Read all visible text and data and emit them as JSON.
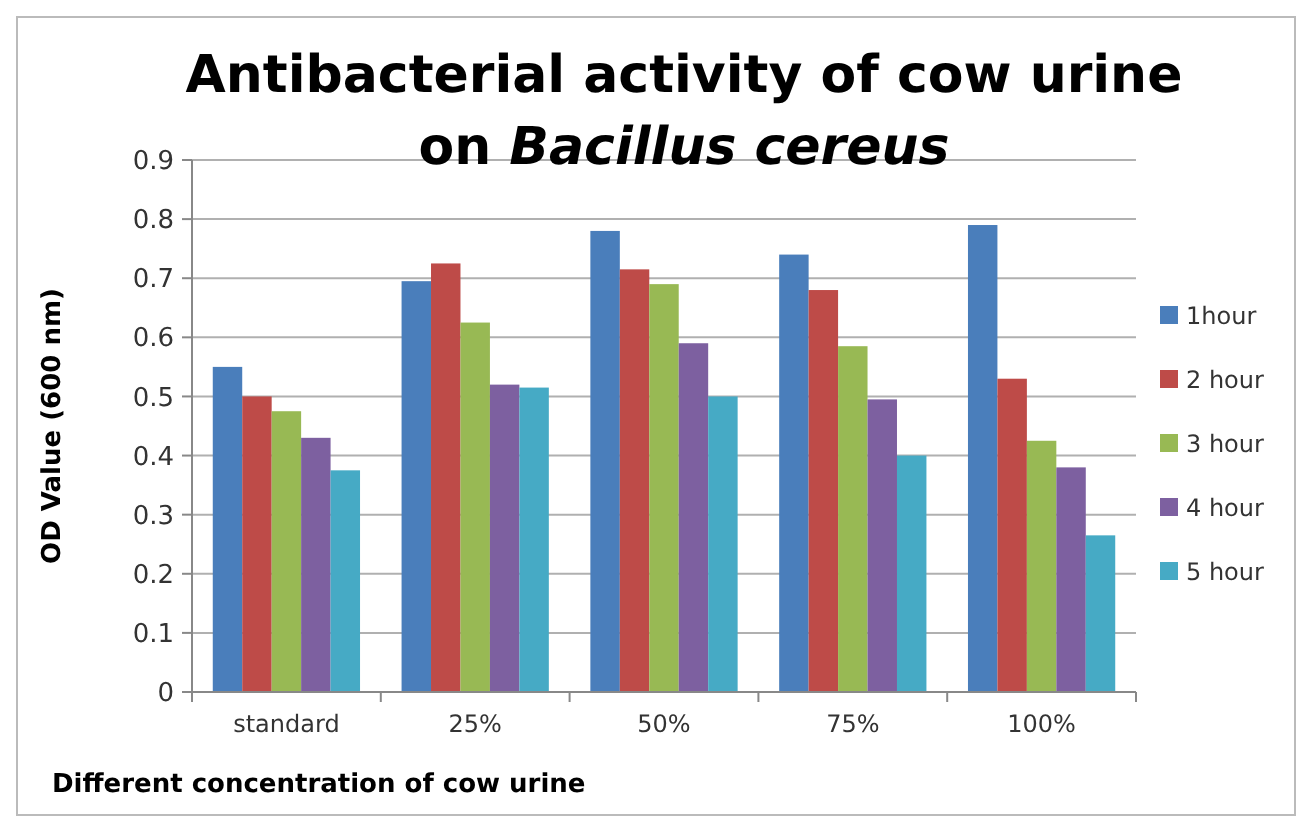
{
  "chart_data": {
    "type": "bar",
    "title": "Antibacterial activity of cow urine on Bacillus cereus",
    "xlabel": "Different concentration of cow urine",
    "ylabel": "OD Value (600 nm)",
    "categories": [
      "standard",
      "25%",
      "50%",
      "75%",
      "100%"
    ],
    "series": [
      {
        "name": "1hour",
        "color": "#4a7ebb",
        "values": [
          0.55,
          0.695,
          0.78,
          0.74,
          0.79
        ]
      },
      {
        "name": "2 hour",
        "color": "#be4b48",
        "values": [
          0.5,
          0.725,
          0.715,
          0.68,
          0.53
        ]
      },
      {
        "name": "3 hour",
        "color": "#98b954",
        "values": [
          0.475,
          0.625,
          0.69,
          0.585,
          0.425
        ]
      },
      {
        "name": "4 hour",
        "color": "#7d60a0",
        "values": [
          0.43,
          0.52,
          0.59,
          0.495,
          0.38
        ]
      },
      {
        "name": "5 hour",
        "color": "#46aac5",
        "values": [
          0.375,
          0.515,
          0.5,
          0.4,
          0.265
        ]
      }
    ],
    "ylim": [
      0,
      0.9
    ],
    "yticks": [
      0,
      0.1,
      0.2,
      0.3,
      0.4,
      0.5,
      0.6,
      0.7,
      0.8,
      0.9
    ],
    "grid": "y",
    "legend": "right"
  }
}
